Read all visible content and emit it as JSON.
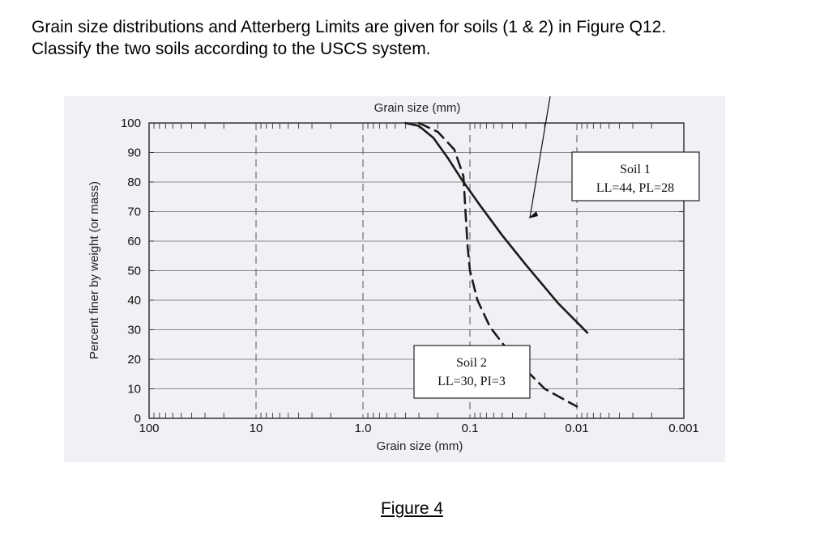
{
  "question": {
    "line1": "Grain size distributions and Atterberg Limits are given for soils (1 & 2) in Figure Q12.",
    "line2": "Classify the two soils according to the USCS system."
  },
  "caption": "Figure 4",
  "chart_data": {
    "type": "line",
    "title": "",
    "x_axis": {
      "label_top": "Grain size (mm)",
      "label_bottom": "Grain size (mm)",
      "scale": "log",
      "reversed": true,
      "range": [
        100,
        0.001
      ],
      "ticks": [
        100,
        10,
        1.0,
        0.1,
        0.01,
        0.001
      ],
      "tick_labels": [
        "100",
        "10",
        "1.0",
        "0.1",
        "0.01",
        "0.001"
      ]
    },
    "y_axis": {
      "label": "Percent finer by weight (or mass)",
      "range": [
        0,
        100
      ],
      "ticks": [
        0,
        10,
        20,
        30,
        40,
        50,
        60,
        70,
        80,
        90,
        100
      ],
      "tick_labels": [
        "0",
        "10",
        "20",
        "30",
        "40",
        "50",
        "60",
        "70",
        "80",
        "90",
        "100"
      ]
    },
    "grid": true,
    "series": [
      {
        "style": "solid",
        "points": [
          [
            0.4,
            100
          ],
          [
            0.3,
            99
          ],
          [
            0.22,
            95
          ],
          [
            0.16,
            88
          ],
          [
            0.12,
            81
          ],
          [
            0.08,
            72
          ],
          [
            0.05,
            62
          ],
          [
            0.03,
            52
          ],
          [
            0.015,
            39
          ],
          [
            0.008,
            29
          ]
        ]
      },
      {
        "style": "dashed",
        "points": [
          [
            0.3,
            100
          ],
          [
            0.2,
            97
          ],
          [
            0.14,
            91
          ],
          [
            0.115,
            82
          ],
          [
            0.11,
            70
          ],
          [
            0.105,
            58
          ],
          [
            0.1,
            50
          ],
          [
            0.085,
            40
          ],
          [
            0.065,
            31
          ],
          [
            0.04,
            21
          ],
          [
            0.02,
            10
          ],
          [
            0.01,
            4
          ]
        ]
      }
    ],
    "annotations": [
      {
        "line1": "Soil 1",
        "line2": "LL=44, PL=28",
        "position": "upper-right"
      },
      {
        "line1": "Soil 2",
        "line2": "LL=30, PI=3",
        "position": "lower-center"
      }
    ]
  }
}
